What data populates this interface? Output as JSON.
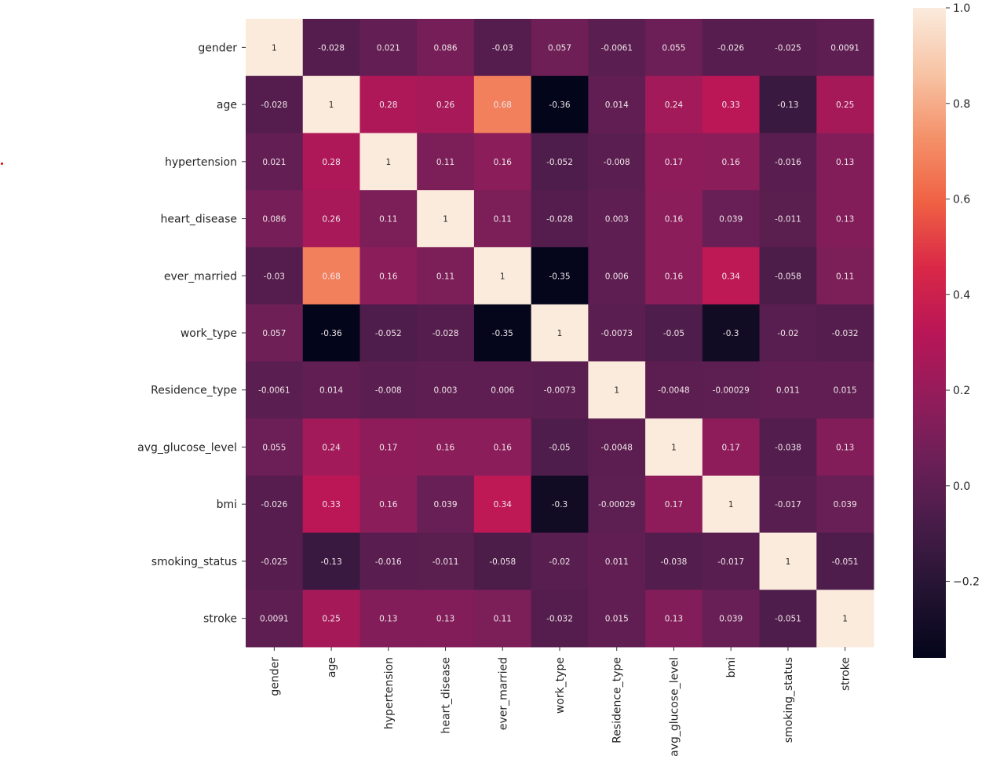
{
  "chart_data": {
    "type": "heatmap",
    "title": "",
    "xlabel": "",
    "ylabel": "",
    "colormap": "rocket",
    "annotated": true,
    "labels": [
      "gender",
      "age",
      "hypertension",
      "heart_disease",
      "ever_married",
      "work_type",
      "Residence_type",
      "avg_glucose_level",
      "bmi",
      "smoking_status",
      "stroke"
    ],
    "values": [
      [
        1,
        -0.028,
        0.021,
        0.086,
        -0.03,
        0.057,
        -0.0061,
        0.055,
        -0.026,
        -0.025,
        0.0091
      ],
      [
        -0.028,
        1,
        0.28,
        0.26,
        0.68,
        -0.36,
        0.014,
        0.24,
        0.33,
        -0.13,
        0.25
      ],
      [
        0.021,
        0.28,
        1,
        0.11,
        0.16,
        -0.052,
        -0.008,
        0.17,
        0.16,
        -0.016,
        0.13
      ],
      [
        0.086,
        0.26,
        0.11,
        1,
        0.11,
        -0.028,
        0.003,
        0.16,
        0.039,
        -0.011,
        0.13
      ],
      [
        -0.03,
        0.68,
        0.16,
        0.11,
        1,
        -0.35,
        0.006,
        0.16,
        0.34,
        -0.058,
        0.11
      ],
      [
        0.057,
        -0.36,
        -0.052,
        -0.028,
        -0.35,
        1,
        -0.0073,
        -0.05,
        -0.3,
        -0.02,
        -0.032
      ],
      [
        -0.0061,
        0.014,
        -0.008,
        0.003,
        0.006,
        -0.0073,
        1,
        -0.0048,
        -0.00029,
        0.011,
        0.015
      ],
      [
        0.055,
        0.24,
        0.17,
        0.16,
        0.16,
        -0.05,
        -0.0048,
        1,
        0.17,
        -0.038,
        0.13
      ],
      [
        -0.026,
        0.33,
        0.16,
        0.039,
        0.34,
        -0.3,
        -0.00029,
        0.17,
        1,
        -0.017,
        0.039
      ],
      [
        -0.025,
        -0.13,
        -0.016,
        -0.011,
        -0.058,
        -0.02,
        0.011,
        -0.038,
        -0.017,
        1,
        -0.051
      ],
      [
        0.0091,
        0.25,
        0.13,
        0.13,
        0.11,
        -0.032,
        0.015,
        0.13,
        0.039,
        -0.051,
        1
      ]
    ],
    "colorbar": {
      "range": [
        -0.36,
        1.0
      ],
      "ticks": [
        1.0,
        0.8,
        0.6,
        0.4,
        0.2,
        0.0,
        -0.2
      ],
      "tick_labels": [
        "1.0",
        "0.8",
        "0.6",
        "0.4",
        "0.2",
        "0.0",
        "−0.2"
      ],
      "placement": "right"
    },
    "grid": false
  }
}
